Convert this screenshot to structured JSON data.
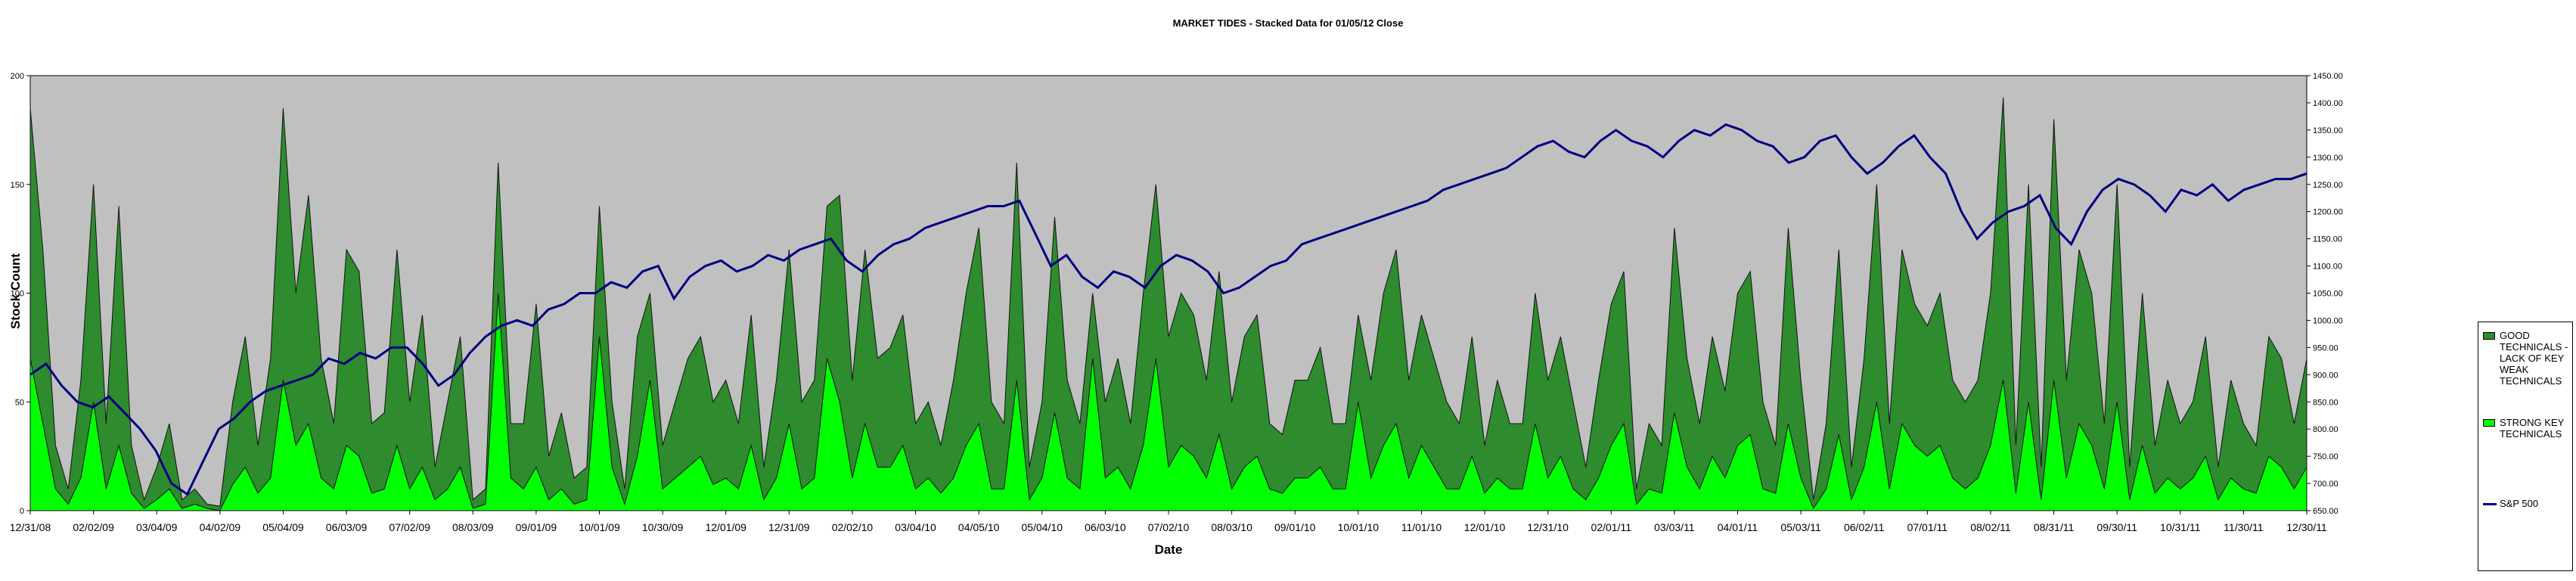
{
  "chart_data": {
    "type": "area",
    "title": "MARKET TIDES - Stacked Data for 01/05/12 Close",
    "xlabel": "Date",
    "ylabel": "Stock Count",
    "left_axis": {
      "ylim": [
        0,
        200
      ],
      "ticks": [
        "0",
        "50",
        "100",
        "150",
        "200"
      ]
    },
    "right_axis": {
      "ylim": [
        650,
        1450
      ],
      "ticks": [
        "650.00",
        "700.00",
        "750.00",
        "800.00",
        "850.00",
        "900.00",
        "950.00",
        "1000.00",
        "1050.00",
        "1100.00",
        "1150.00",
        "1200.00",
        "1250.00",
        "1300.00",
        "1350.00",
        "1400.00",
        "1450.00"
      ]
    },
    "x_ticks": [
      "12/31/08",
      "02/02/09",
      "03/04/09",
      "04/02/09",
      "05/04/09",
      "06/03/09",
      "07/02/09",
      "08/03/09",
      "09/01/09",
      "10/01/09",
      "10/30/09",
      "12/01/09",
      "12/31/09",
      "02/02/10",
      "03/04/10",
      "04/05/10",
      "05/04/10",
      "06/03/10",
      "07/02/10",
      "08/03/10",
      "09/01/10",
      "10/01/10",
      "11/01/10",
      "12/01/10",
      "12/31/10",
      "02/01/11",
      "03/03/11",
      "04/01/11",
      "05/03/11",
      "06/02/11",
      "07/01/11",
      "08/02/11",
      "08/31/11",
      "09/30/11",
      "10/31/11",
      "11/30/11",
      "12/30/11"
    ],
    "grid": false,
    "legend_placement": "right",
    "series": [
      {
        "name": "GOOD TECHNICALS - LACK OF KEY WEAK TECHNICALS",
        "kind": "area",
        "color": "#2e8b2e",
        "axis": "left",
        "values": [
          185,
          120,
          30,
          10,
          60,
          150,
          40,
          140,
          30,
          5,
          20,
          40,
          5,
          10,
          3,
          2,
          50,
          80,
          30,
          70,
          185,
          100,
          145,
          70,
          40,
          120,
          110,
          40,
          45,
          120,
          50,
          90,
          20,
          50,
          80,
          5,
          10,
          160,
          40,
          40,
          95,
          25,
          45,
          15,
          20,
          140,
          50,
          10,
          80,
          100,
          30,
          50,
          70,
          80,
          50,
          60,
          40,
          90,
          20,
          60,
          120,
          50,
          60,
          140,
          145,
          60,
          120,
          70,
          75,
          90,
          40,
          50,
          30,
          60,
          100,
          130,
          50,
          40,
          160,
          20,
          50,
          135,
          60,
          40,
          100,
          50,
          70,
          40,
          100,
          150,
          80,
          100,
          90,
          60,
          110,
          50,
          80,
          90,
          40,
          35,
          60,
          60,
          75,
          40,
          40,
          90,
          60,
          100,
          120,
          60,
          90,
          70,
          50,
          40,
          80,
          30,
          60,
          40,
          40,
          100,
          60,
          80,
          50,
          20,
          60,
          95,
          110,
          10,
          40,
          30,
          130,
          70,
          40,
          80,
          55,
          100,
          110,
          50,
          30,
          130,
          60,
          5,
          40,
          120,
          20,
          70,
          150,
          40,
          120,
          95,
          85,
          100,
          60,
          50,
          60,
          100,
          190,
          30,
          150,
          20,
          180,
          60,
          120,
          100,
          40,
          150,
          20,
          100,
          30,
          60,
          40,
          50,
          80,
          20,
          60,
          40,
          30,
          80,
          70,
          40,
          70
        ]
      },
      {
        "name": "STRONG KEY TECHNICALS",
        "kind": "area",
        "color": "#00ff00",
        "axis": "left",
        "values": [
          70,
          40,
          10,
          3,
          15,
          50,
          10,
          30,
          8,
          1,
          5,
          10,
          1,
          3,
          1,
          0,
          12,
          20,
          8,
          15,
          60,
          30,
          40,
          15,
          10,
          30,
          25,
          8,
          10,
          30,
          10,
          20,
          5,
          10,
          20,
          1,
          3,
          100,
          15,
          10,
          20,
          5,
          10,
          3,
          5,
          80,
          20,
          3,
          25,
          60,
          10,
          15,
          20,
          25,
          12,
          15,
          10,
          30,
          5,
          15,
          40,
          10,
          15,
          70,
          50,
          15,
          40,
          20,
          20,
          30,
          10,
          15,
          8,
          15,
          30,
          40,
          10,
          10,
          60,
          5,
          15,
          45,
          15,
          10,
          70,
          15,
          20,
          10,
          30,
          70,
          20,
          30,
          25,
          15,
          35,
          10,
          20,
          25,
          10,
          8,
          15,
          15,
          20,
          10,
          10,
          50,
          15,
          30,
          40,
          15,
          30,
          20,
          10,
          10,
          25,
          8,
          15,
          10,
          10,
          40,
          15,
          25,
          10,
          5,
          15,
          30,
          40,
          3,
          10,
          8,
          45,
          20,
          10,
          25,
          15,
          30,
          35,
          10,
          8,
          40,
          15,
          1,
          10,
          35,
          5,
          20,
          50,
          10,
          40,
          30,
          25,
          30,
          15,
          10,
          15,
          30,
          60,
          8,
          50,
          5,
          60,
          15,
          40,
          30,
          10,
          50,
          5,
          30,
          8,
          15,
          10,
          15,
          25,
          5,
          15,
          10,
          8,
          25,
          20,
          10,
          20
        ]
      },
      {
        "name": "S&P 500",
        "kind": "line",
        "color": "#000080",
        "axis": "right",
        "values": [
          900,
          920,
          880,
          850,
          840,
          860,
          830,
          800,
          760,
          700,
          680,
          740,
          800,
          820,
          850,
          870,
          880,
          890,
          900,
          930,
          920,
          940,
          930,
          950,
          950,
          920,
          880,
          900,
          940,
          970,
          990,
          1000,
          990,
          1020,
          1030,
          1050,
          1050,
          1070,
          1060,
          1090,
          1100,
          1040,
          1080,
          1100,
          1110,
          1090,
          1100,
          1120,
          1110,
          1130,
          1140,
          1150,
          1110,
          1090,
          1120,
          1140,
          1150,
          1170,
          1180,
          1190,
          1200,
          1210,
          1210,
          1220,
          1160,
          1100,
          1120,
          1080,
          1060,
          1090,
          1080,
          1060,
          1100,
          1120,
          1110,
          1090,
          1050,
          1060,
          1080,
          1100,
          1110,
          1140,
          1150,
          1160,
          1170,
          1180,
          1190,
          1200,
          1210,
          1220,
          1240,
          1250,
          1260,
          1270,
          1280,
          1300,
          1320,
          1330,
          1310,
          1300,
          1330,
          1350,
          1330,
          1320,
          1300,
          1330,
          1350,
          1340,
          1360,
          1350,
          1330,
          1320,
          1290,
          1300,
          1330,
          1340,
          1300,
          1270,
          1290,
          1320,
          1340,
          1300,
          1270,
          1200,
          1150,
          1180,
          1200,
          1210,
          1230,
          1170,
          1140,
          1200,
          1240,
          1260,
          1250,
          1230,
          1200,
          1240,
          1230,
          1250,
          1220,
          1240,
          1250,
          1260,
          1260,
          1270
        ]
      }
    ]
  }
}
